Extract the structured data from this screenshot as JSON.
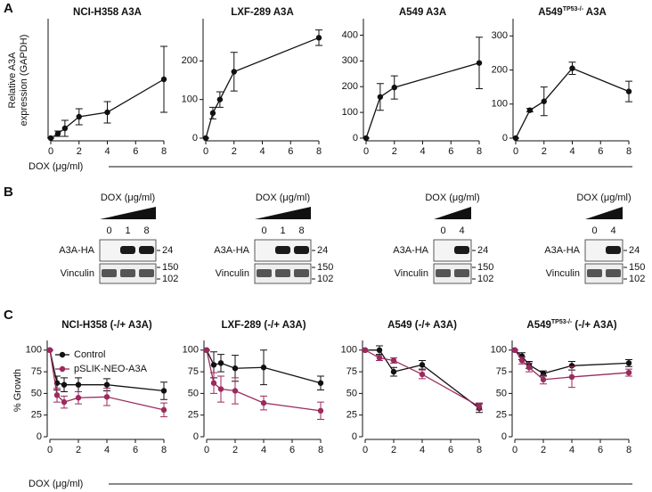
{
  "figure": {
    "panels": [
      "A",
      "B",
      "C"
    ],
    "dox_label_a": "DOX (μg/ml)",
    "dox_label_c": "DOX (μg/ml)"
  },
  "blots": [
    {
      "dox_label": "DOX (μg/ml)",
      "lanes": [
        "0",
        "1",
        "8"
      ],
      "rows": [
        "A3A-HA",
        "Vinculin"
      ],
      "markers": [
        "24",
        "150",
        "102"
      ]
    },
    {
      "dox_label": "DOX (μg/ml)",
      "lanes": [
        "0",
        "1",
        "8"
      ],
      "rows": [
        "A3A-HA",
        "Vinculin"
      ],
      "markers": [
        "24",
        "150",
        "102"
      ]
    },
    {
      "dox_label": "DOX (μg/ml)",
      "lanes": [
        "0",
        "4"
      ],
      "rows": [
        "A3A-HA",
        "Vinculin"
      ],
      "markers": [
        "24",
        "150",
        "102"
      ]
    },
    {
      "dox_label": "DOX (μg/ml)",
      "lanes": [
        "0",
        "4"
      ],
      "rows": [
        "A3A-HA",
        "Vinculin"
      ],
      "markers": [
        "24",
        "150",
        "102"
      ]
    }
  ],
  "chart_data": [
    {
      "type": "line",
      "title": "NCI-H358 A3A",
      "ylabel_lines": [
        "Relative A3A",
        "expression (GAPDH)"
      ],
      "x": [
        0,
        0.5,
        1,
        2,
        4,
        8
      ],
      "xlim": [
        0,
        8
      ],
      "xticks": [
        0,
        2,
        4,
        6,
        8
      ],
      "ylim": [
        0,
        650
      ],
      "series": [
        {
          "color": "#111111",
          "values": [
            0,
            25,
            55,
            120,
            145,
            330
          ],
          "errors": [
            0,
            15,
            45,
            45,
            60,
            185
          ]
        }
      ]
    },
    {
      "type": "line",
      "title": "LXF-289 A3A",
      "x": [
        0,
        0.5,
        1,
        2,
        8
      ],
      "xlim": [
        0,
        8
      ],
      "xticks": [
        0,
        2,
        4,
        6,
        8
      ],
      "ylim": [
        0,
        300
      ],
      "yticks": [
        0,
        100,
        200
      ],
      "series": [
        {
          "color": "#111111",
          "values": [
            0,
            65,
            100,
            172,
            260
          ],
          "errors": [
            0,
            15,
            20,
            50,
            20
          ]
        }
      ]
    },
    {
      "type": "line",
      "title": "A549 A3A",
      "x": [
        0,
        1,
        2,
        8
      ],
      "xlim": [
        0,
        8
      ],
      "xticks": [
        0,
        2,
        4,
        6,
        8
      ],
      "ylim": [
        0,
        450
      ],
      "yticks": [
        0,
        100,
        200,
        300,
        400
      ],
      "series": [
        {
          "color": "#111111",
          "values": [
            0,
            160,
            197,
            292
          ],
          "errors": [
            0,
            52,
            45,
            100
          ]
        }
      ]
    },
    {
      "type": "line",
      "title": "A549",
      "title_superscript": "TP53-/-",
      "title_suffix": " A3A",
      "x": [
        0,
        1,
        2,
        4,
        8
      ],
      "xlim": [
        0,
        8
      ],
      "xticks": [
        0,
        2,
        4,
        6,
        8
      ],
      "ylim": [
        0,
        340
      ],
      "yticks": [
        0,
        100,
        200,
        300
      ],
      "series": [
        {
          "color": "#111111",
          "values": [
            0,
            82,
            108,
            205,
            137
          ],
          "errors": [
            0,
            5,
            42,
            18,
            30
          ]
        }
      ]
    },
    {
      "type": "line",
      "title": "NCI-H358 (-/+ A3A)",
      "ylabel": "% Growth",
      "legend": "upper right",
      "x": [
        0,
        0.5,
        1,
        2,
        4,
        8
      ],
      "xlim": [
        0,
        8
      ],
      "xticks": [
        0,
        2,
        4,
        6,
        8
      ],
      "ylim": [
        0,
        107
      ],
      "yticks": [
        0,
        25,
        50,
        75,
        100
      ],
      "series": [
        {
          "name": "Control",
          "color": "#111111",
          "values": [
            100,
            62,
            60,
            60,
            60,
            53
          ],
          "errors": [
            0,
            8,
            8,
            8,
            7,
            10
          ]
        },
        {
          "name": "pSLIK-NEO-A3A",
          "color": "#9b2a5e",
          "values": [
            100,
            48,
            40,
            45,
            46,
            31
          ],
          "errors": [
            0,
            8,
            7,
            7,
            10,
            8
          ]
        }
      ]
    },
    {
      "type": "line",
      "title": "LXF-289 (-/+ A3A)",
      "x": [
        0,
        0.5,
        1,
        2,
        4,
        8
      ],
      "xlim": [
        0,
        8
      ],
      "xticks": [
        0,
        2,
        4,
        6,
        8
      ],
      "ylim": [
        0,
        107
      ],
      "yticks": [
        0,
        25,
        50,
        75,
        100
      ],
      "series": [
        {
          "color": "#111111",
          "values": [
            100,
            83,
            85,
            79,
            80,
            62
          ],
          "errors": [
            0,
            15,
            10,
            15,
            20,
            8
          ]
        },
        {
          "color": "#9b2a5e",
          "values": [
            100,
            62,
            55,
            53,
            39,
            30
          ],
          "errors": [
            0,
            12,
            15,
            15,
            8,
            10
          ]
        }
      ]
    },
    {
      "type": "line",
      "title": "A549 (-/+ A3A)",
      "x": [
        0,
        1,
        2,
        4,
        8
      ],
      "xlim": [
        0,
        8
      ],
      "xticks": [
        0,
        2,
        4,
        6,
        8
      ],
      "ylim": [
        0,
        107
      ],
      "yticks": [
        0,
        25,
        50,
        75,
        100
      ],
      "series": [
        {
          "color": "#111111",
          "values": [
            100,
            100,
            75,
            83,
            33
          ],
          "errors": [
            0,
            5,
            5,
            5,
            5
          ]
        },
        {
          "color": "#9b2a5e",
          "values": [
            100,
            91,
            88,
            72,
            35
          ],
          "errors": [
            0,
            3,
            3,
            5,
            4
          ]
        }
      ]
    },
    {
      "type": "line",
      "title": "A549",
      "title_superscript": "TP53-/-",
      "title_suffix": " (-/+ A3A)",
      "x": [
        0,
        0.5,
        1,
        2,
        4,
        8
      ],
      "xlim": [
        0,
        8
      ],
      "xticks": [
        0,
        2,
        4,
        6,
        8
      ],
      "ylim": [
        0,
        107
      ],
      "yticks": [
        0,
        25,
        50,
        75,
        100
      ],
      "series": [
        {
          "color": "#111111",
          "values": [
            100,
            93,
            83,
            73,
            82,
            85
          ],
          "errors": [
            0,
            4,
            4,
            3,
            5,
            4
          ]
        },
        {
          "color": "#9b2a5e",
          "values": [
            100,
            88,
            80,
            66,
            69,
            74
          ],
          "errors": [
            0,
            4,
            5,
            5,
            12,
            4
          ]
        }
      ]
    }
  ]
}
